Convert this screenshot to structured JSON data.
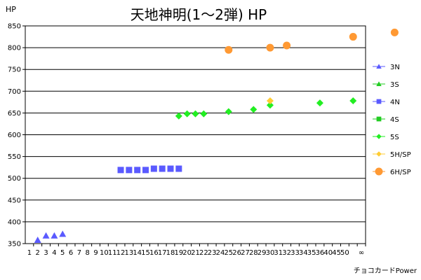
{
  "chart_data": {
    "type": "scatter",
    "title": "天地神明(1～2弾) HP",
    "ylabel": "HP",
    "xlabel": "チョコカードPower",
    "ylim": [
      350,
      850
    ],
    "y_ticks": [
      350,
      400,
      450,
      500,
      550,
      600,
      650,
      700,
      750,
      800,
      850
    ],
    "x_categories": [
      "1",
      "2",
      "3",
      "4",
      "5",
      "6",
      "7",
      "8",
      "9",
      "10",
      "11",
      "12",
      "13",
      "14",
      "15",
      "16",
      "17",
      "18",
      "19",
      "20",
      "21",
      "22",
      "23",
      "24",
      "25",
      "26",
      "27",
      "28",
      "29",
      "30",
      "31",
      "32",
      "33",
      "34",
      "35",
      "36",
      "40",
      "45",
      "50",
      "∞"
    ],
    "x_tick_labels": [
      "1",
      "2",
      "3",
      "4",
      "5",
      "6",
      "7",
      "8",
      "9",
      "10",
      "11",
      "12",
      "13",
      "14",
      "15",
      "16",
      "17",
      "18",
      "19",
      "20",
      "21",
      "22",
      "23",
      "24",
      "25",
      "26",
      "27",
      "28",
      "29",
      "30",
      "31",
      "32",
      "33",
      "34",
      "35",
      "36",
      "40",
      "45",
      "50",
      "",
      "∞"
    ],
    "grid": "horizontal",
    "legend_position": "right",
    "series": [
      {
        "name": "3N",
        "marker": "triangle",
        "color": "#5a5aff",
        "points": [
          [
            2,
            358
          ],
          [
            3,
            368
          ],
          [
            4,
            368
          ],
          [
            5,
            372
          ]
        ]
      },
      {
        "name": "3S",
        "marker": "triangle",
        "color": "#22cc22",
        "points": []
      },
      {
        "name": "4N",
        "marker": "square",
        "color": "#5a5aff",
        "points": [
          [
            12,
            519
          ],
          [
            13,
            519
          ],
          [
            14,
            519
          ],
          [
            15,
            519
          ],
          [
            16,
            522
          ],
          [
            17,
            522
          ],
          [
            18,
            522
          ],
          [
            19,
            522
          ]
        ]
      },
      {
        "name": "4S",
        "marker": "square",
        "color": "#22cc22",
        "points": []
      },
      {
        "name": "5S",
        "marker": "diamond",
        "color": "#22ee22",
        "points": [
          [
            19,
            643
          ],
          [
            20,
            648
          ],
          [
            21,
            648
          ],
          [
            22,
            648
          ],
          [
            25,
            653
          ],
          [
            28,
            658
          ],
          [
            30,
            668
          ],
          [
            36,
            673
          ],
          [
            40,
            678
          ]
        ]
      },
      {
        "name": "5H/SP",
        "marker": "diamond",
        "color": "#ffcc33",
        "points": [
          [
            30,
            678
          ]
        ]
      },
      {
        "name": "6H/SP",
        "marker": "circle",
        "color": "#ff9933",
        "points": [
          [
            25,
            795
          ],
          [
            30,
            800
          ],
          [
            32,
            805
          ],
          [
            40,
            825
          ],
          [
            45,
            835
          ],
          [
            51,
            840
          ]
        ]
      }
    ]
  }
}
